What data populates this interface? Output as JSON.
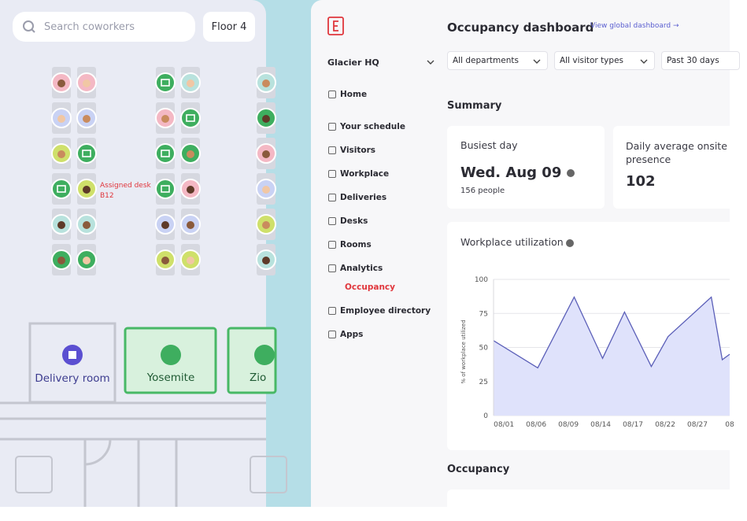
{
  "floor_map": {
    "search_placeholder": "Search coworkers",
    "floor": "Floor 4",
    "assigned_desk": {
      "label": "Assigned desk",
      "desk": "B12"
    },
    "rooms": [
      "Delivery room",
      "Yosemite",
      "Zio"
    ]
  },
  "sidebar": {
    "location": "Glacier HQ",
    "nav": [
      "Home",
      "Your schedule",
      "Visitors",
      "Workplace",
      "Deliveries",
      "Desks",
      "Rooms",
      "Analytics",
      "Occupancy",
      "Employee directory",
      "Apps"
    ]
  },
  "header": {
    "title": "Occupancy dashboard",
    "link": "View global dashboard →"
  },
  "filters": [
    "All departments",
    "All visitor types",
    "Past 30 days"
  ],
  "summary": {
    "heading": "Summary",
    "cards": [
      {
        "label": "Busiest day",
        "value": "Wed. Aug 09",
        "detail": "156 people"
      },
      {
        "label": "Daily average onsite presence",
        "value": 102
      }
    ]
  },
  "chart_data": {
    "type": "line",
    "title": "Workplace utilization",
    "y_label": "% of workplace utilized",
    "series": [
      {
        "color": "#5b5fb8",
        "fill": "#dfe2fb",
        "x": [
          -0.32,
          1.05,
          2.18,
          3.06,
          3.74,
          4.57,
          5.09,
          6.43,
          6.77,
          7.0
        ],
        "values": [
          55,
          35,
          87,
          42,
          76,
          36,
          58,
          87,
          41,
          45
        ]
      }
    ],
    "xlim": [
      -0.32,
      7.0
    ],
    "xticks": [
      {
        "value": 0,
        "label": "08/01"
      },
      {
        "value": 1,
        "label": "08/06"
      },
      {
        "value": 2,
        "label": "08/09"
      },
      {
        "value": 3,
        "label": "08/14"
      },
      {
        "value": 4,
        "label": "08/17"
      },
      {
        "value": 5,
        "label": "08/22"
      },
      {
        "value": 6,
        "label": "08/27"
      },
      {
        "value": 7,
        "label": "08"
      }
    ],
    "ylim": [
      0,
      100
    ],
    "yticks": [
      0,
      25,
      50,
      75,
      100
    ],
    "grid": true
  },
  "occupancy": {
    "heading": "Occupancy"
  }
}
